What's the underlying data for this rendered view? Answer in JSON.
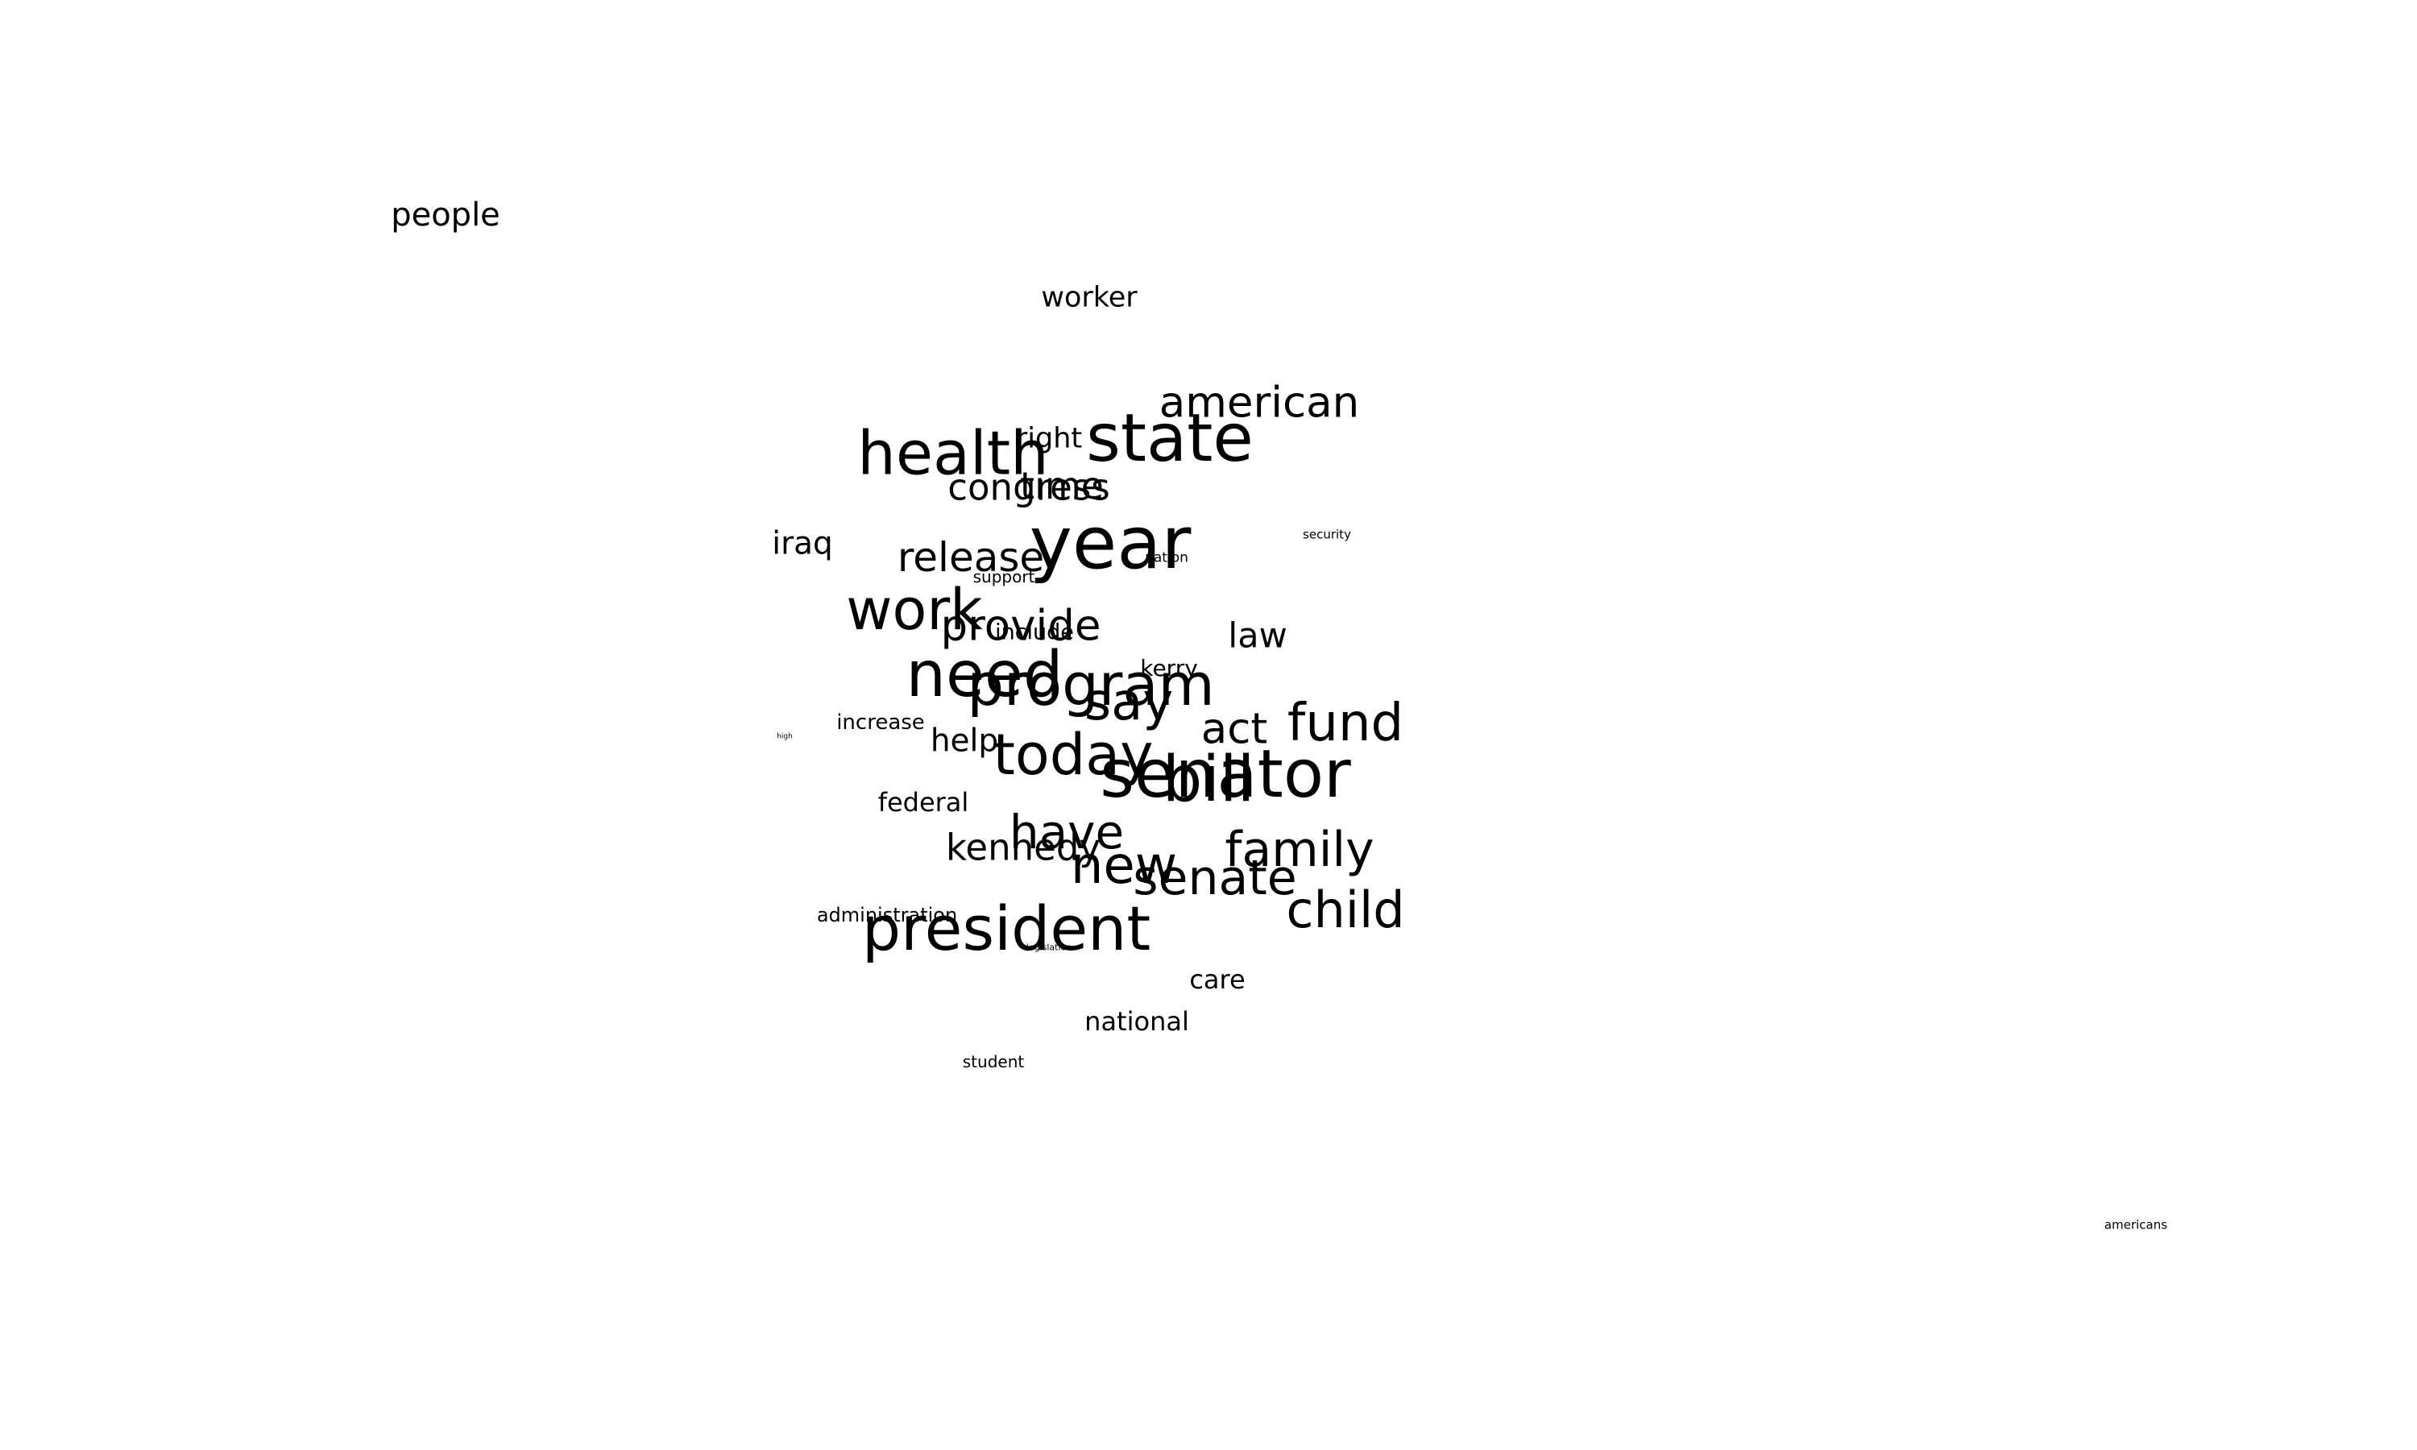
{
  "words": {
    "people": "people",
    "worker": "worker",
    "american": "american",
    "state": "state",
    "health": "health",
    "right": "right",
    "time": "time",
    "congress": "congress",
    "iraq": "iraq",
    "release": "release",
    "year": "year",
    "support": "support",
    "nation": "nation",
    "security": "security",
    "work": "work",
    "provide": "provide",
    "include": "include",
    "law": "law",
    "need": "need",
    "program": "program",
    "kerry": "kerry",
    "say": "say",
    "increase": "increase",
    "high": "high",
    "help": "help",
    "act": "act",
    "fund": "fund",
    "today": "today",
    "senator": "senator",
    "bill": "bill",
    "federal": "federal",
    "have": "have",
    "kennedy": "kennedy",
    "new": "new",
    "family": "family",
    "senate": "senate",
    "child": "child",
    "administration": "administration",
    "president": "president",
    "legislation": "legislation",
    "care": "care",
    "national": "national",
    "student": "student",
    "americans": "americans"
  }
}
